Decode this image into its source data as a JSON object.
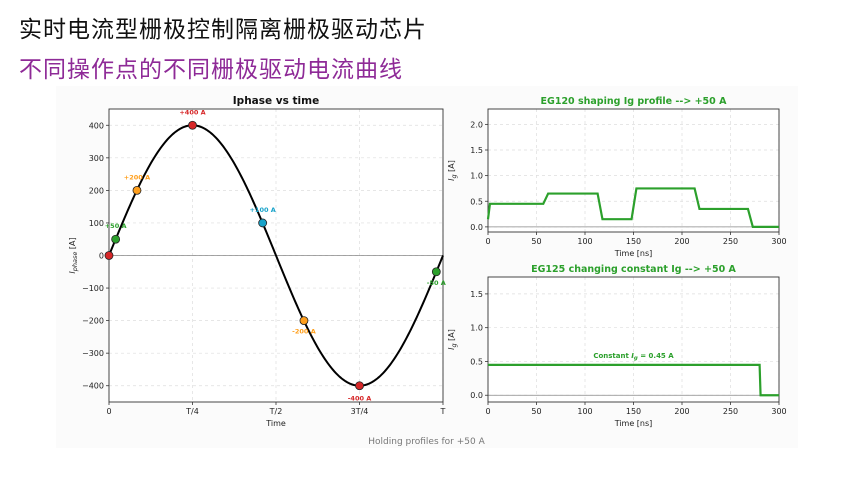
{
  "slide": {
    "title": "实时电流型栅极控制隔离栅极驱动芯片",
    "subtitle": "不同操作点的不同栅极驱动电流曲线",
    "footer": "Holding profiles for +50 A"
  },
  "colors": {
    "title": "#111111",
    "subtitle": "#8e2a97",
    "curve": "#000000",
    "profile": "#2ca02c",
    "grid": "#dddddd",
    "points": [
      "#d62728",
      "#2ca02c",
      "#ff9f1c",
      "#d62728",
      "#17a2c9",
      "#ff9f1c",
      "#d62728",
      "#2ca02c"
    ]
  },
  "chart_data": [
    {
      "type": "line",
      "title": "Iphase vs time",
      "xlabel": "Time",
      "ylabel_main": "I",
      "ylabel_sub": "phase",
      "ylabel_unit": " [A]",
      "xlim": [
        0,
        1
      ],
      "ylim": [
        -450,
        450
      ],
      "x_ticks": [
        0,
        0.25,
        0.5,
        0.75,
        1
      ],
      "x_tick_labels": [
        "0",
        "T/4",
        "T/2",
        "3T/4",
        "T"
      ],
      "y_ticks": [
        -400,
        -300,
        -200,
        -100,
        0,
        100,
        200,
        300,
        400
      ],
      "y_tick_labels": [
        "−400",
        "−300",
        "−200",
        "−100",
        "0",
        "100",
        "200",
        "300",
        "400"
      ],
      "grid": true,
      "curve": {
        "amplitude": 400,
        "periods": 1
      },
      "points": [
        {
          "x": 0.0,
          "y": 0,
          "label": ""
        },
        {
          "x": 0.0199,
          "y": 50,
          "label": "+50 A"
        },
        {
          "x": 0.0837,
          "y": 200,
          "label": "+200 A"
        },
        {
          "x": 0.25,
          "y": 400,
          "label": "+400 A"
        },
        {
          "x": 0.46,
          "y": 100,
          "label": "+100 A"
        },
        {
          "x": 0.5837,
          "y": -200,
          "label": "-200 A"
        },
        {
          "x": 0.75,
          "y": -400,
          "label": "-400 A"
        },
        {
          "x": 0.98,
          "y": -50,
          "label": "-50 A"
        }
      ]
    },
    {
      "type": "line",
      "title": "EG120 shaping Ig profile --> +50 A",
      "xlabel": "Time [ns]",
      "ylabel_main": "I",
      "ylabel_sub": "g",
      "ylabel_unit": " [A]",
      "xlim": [
        0,
        300
      ],
      "ylim": [
        -0.1,
        2.3
      ],
      "x_ticks": [
        0,
        50,
        100,
        150,
        200,
        250,
        300
      ],
      "y_ticks": [
        0,
        0.5,
        1,
        1.5,
        2
      ],
      "y_tick_labels": [
        "0.0",
        "0.5",
        "1.0",
        "1.5",
        "2.0"
      ],
      "grid": true,
      "x": [
        0,
        2,
        57,
        62,
        113,
        118,
        148,
        153,
        213,
        218,
        268,
        273,
        300
      ],
      "y": [
        0.15,
        0.45,
        0.45,
        0.65,
        0.65,
        0.15,
        0.15,
        0.75,
        0.75,
        0.35,
        0.35,
        0,
        0
      ]
    },
    {
      "type": "line",
      "title": "EG125 changing constant Ig --> +50 A",
      "xlabel": "Time [ns]",
      "ylabel_main": "I",
      "ylabel_sub": "g",
      "ylabel_unit": " [A]",
      "xlim": [
        0,
        300
      ],
      "ylim": [
        -0.1,
        1.75
      ],
      "x_ticks": [
        0,
        50,
        100,
        150,
        200,
        250,
        300
      ],
      "y_ticks": [
        0,
        0.5,
        1,
        1.5
      ],
      "y_tick_labels": [
        "0.0",
        "0.5",
        "1.0",
        "1.5"
      ],
      "grid": true,
      "x": [
        0,
        280,
        281,
        300
      ],
      "y": [
        0.45,
        0.45,
        0,
        0
      ],
      "annotation": {
        "x": 150,
        "y": 0.55,
        "pre": "Constant ",
        "main": "I",
        "sub": "g",
        "post": " = 0.45 A"
      }
    }
  ]
}
